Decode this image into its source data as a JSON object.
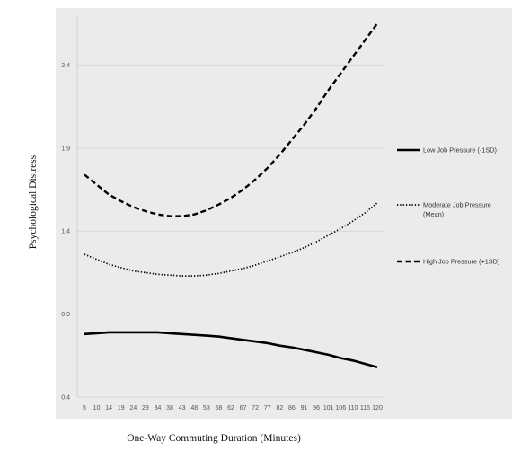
{
  "chart_data": {
    "type": "line",
    "title": "",
    "xlabel": "One-Way Commuting Duration (Minutes)",
    "ylabel": "Psychological Distress",
    "x": [
      5,
      10,
      14,
      19,
      24,
      29,
      34,
      38,
      43,
      48,
      53,
      58,
      62,
      67,
      72,
      77,
      82,
      86,
      91,
      96,
      101,
      106,
      110,
      115,
      120
    ],
    "x_tick_labels": [
      "5",
      "10",
      "14",
      "19",
      "24",
      "29",
      "34",
      "38",
      "43",
      "48",
      "53",
      "58",
      "62",
      "67",
      "72",
      "77",
      "82",
      "86",
      "91",
      "96",
      "101",
      "106",
      "110",
      "115",
      "120"
    ],
    "ylim": [
      0.4,
      2.7
    ],
    "yticks": [
      0.4,
      0.9,
      1.4,
      1.9,
      2.4
    ],
    "y_tick_labels": [
      "0.4",
      "0.9",
      "1.4",
      "1.9",
      "2.4"
    ],
    "grid": true,
    "legend_position": "right",
    "background": "#ebebeb",
    "series": [
      {
        "name": "Low Job Pressure (-1SD)",
        "style": "solid",
        "color": "#000000",
        "values": [
          0.78,
          0.785,
          0.79,
          0.79,
          0.79,
          0.79,
          0.79,
          0.785,
          0.78,
          0.775,
          0.77,
          0.765,
          0.755,
          0.745,
          0.735,
          0.725,
          0.71,
          0.7,
          0.685,
          0.67,
          0.655,
          0.635,
          0.62,
          0.6,
          0.58
        ]
      },
      {
        "name": "Moderate Job Pressure (Mean)",
        "style": "dotted",
        "color": "#000000",
        "values": [
          1.26,
          1.23,
          1.2,
          1.18,
          1.16,
          1.15,
          1.14,
          1.135,
          1.13,
          1.13,
          1.135,
          1.145,
          1.16,
          1.175,
          1.195,
          1.22,
          1.245,
          1.27,
          1.3,
          1.335,
          1.375,
          1.415,
          1.46,
          1.51,
          1.57
        ]
      },
      {
        "name": "High Job Pressure (+1SD)",
        "style": "dashed",
        "color": "#000000",
        "values": [
          1.74,
          1.68,
          1.62,
          1.58,
          1.545,
          1.52,
          1.5,
          1.49,
          1.49,
          1.5,
          1.525,
          1.56,
          1.6,
          1.65,
          1.71,
          1.78,
          1.86,
          1.95,
          2.04,
          2.14,
          2.25,
          2.35,
          2.45,
          2.55,
          2.65
        ]
      }
    ]
  }
}
